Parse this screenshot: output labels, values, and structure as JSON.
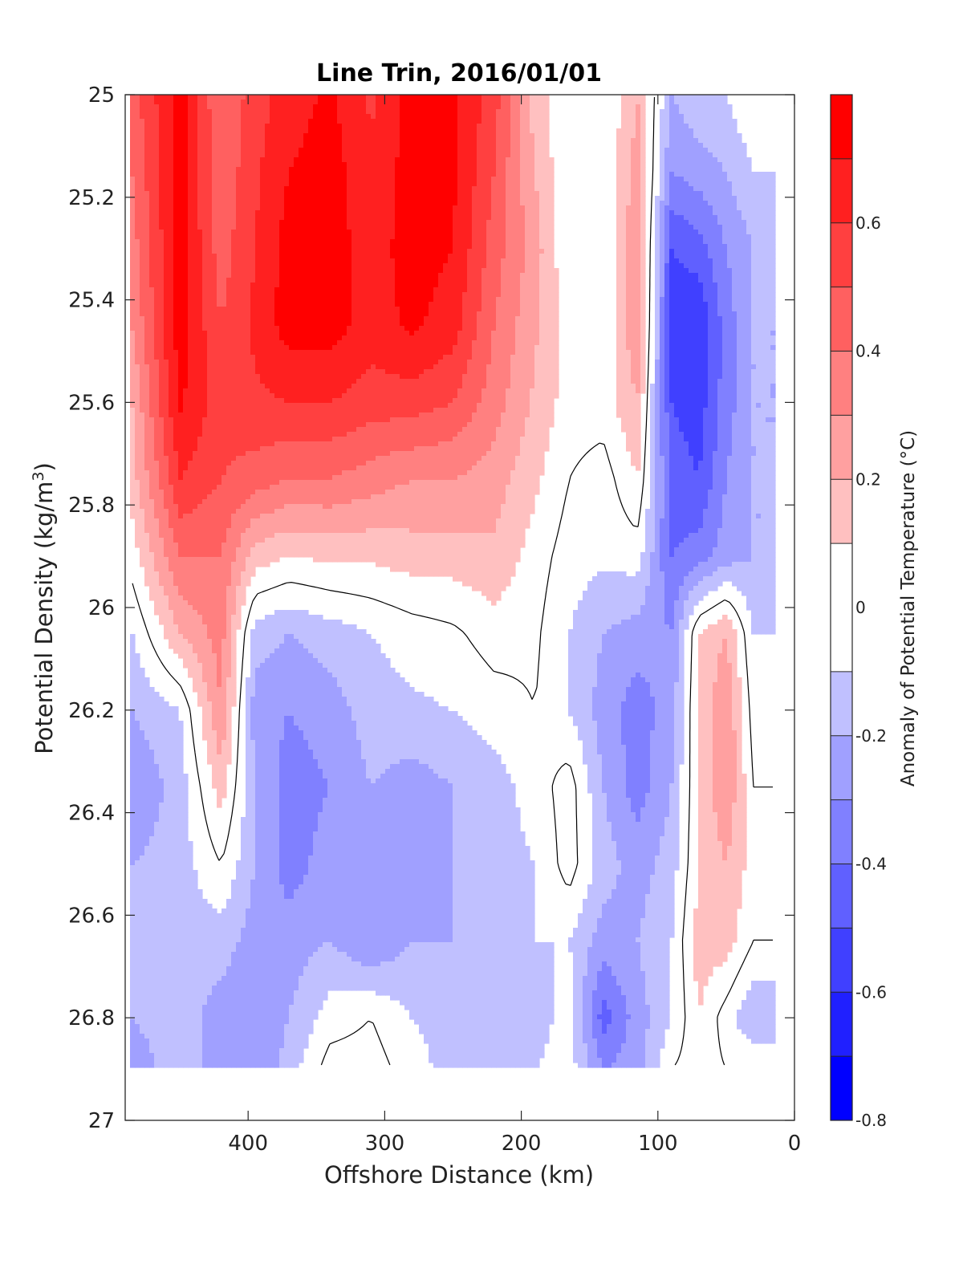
{
  "chart_data": {
    "type": "heatmap",
    "subtype": "filled-contour",
    "title": "Line Trin, 2016/01/01",
    "xlabel": "Offshore Distance (km)",
    "ylabel_main": "Potential Density (kg/m",
    "ylabel_sup": "3",
    "ylabel_close": ")",
    "colorbar_label": "Anomaly of Potential Temperature (°C)",
    "xlim": [
      490,
      0
    ],
    "ylim": [
      25,
      27
    ],
    "y_axis_inverted": true,
    "x_ticks": [
      400,
      300,
      200,
      100,
      0
    ],
    "x_tick_labels": [
      "400",
      "300",
      "200",
      "100",
      "0"
    ],
    "y_ticks": [
      25,
      25.2,
      25.4,
      25.6,
      25.8,
      26,
      26.2,
      26.4,
      26.6,
      26.8,
      27
    ],
    "y_tick_labels": [
      "25",
      "25.2",
      "25.4",
      "25.6",
      "25.8",
      "26",
      "26.2",
      "26.4",
      "26.6",
      "26.8",
      "27"
    ],
    "colorbar_range": [
      -0.8,
      0.8
    ],
    "colorbar_levels": [
      -0.8,
      -0.7,
      -0.6,
      -0.5,
      -0.4,
      -0.3,
      -0.2,
      -0.1,
      0.1,
      0.2,
      0.3,
      0.4,
      0.5,
      0.6,
      0.7,
      0.8
    ],
    "colorbar_ticks": [
      -0.8,
      -0.6,
      -0.4,
      -0.2,
      0,
      0.2,
      0.4,
      0.6
    ],
    "colorbar_tick_labels": [
      "-0.8",
      "-0.6",
      "-0.4",
      "-0.2",
      "0",
      "0.2",
      "0.4",
      "0.6"
    ],
    "colors": {
      "-0.75": "#0000ff",
      "-0.65": "#2020ff",
      "-0.55": "#4040ff",
      "-0.45": "#6060ff",
      "-0.35": "#8080ff",
      "-0.25": "#a0a0ff",
      "-0.15": "#c0c0ff",
      "0": "#ffffff",
      "0.15": "#ffc0c0",
      "0.25": "#ffa0a0",
      "0.35": "#ff8080",
      "0.45": "#ff6060",
      "0.55": "#ff4040",
      "0.65": "#ff2020",
      "0.75": "#ff0000"
    },
    "zero_contour_color": "#000000",
    "x": [
      485,
      450,
      420,
      395,
      370,
      340,
      310,
      280,
      250,
      220,
      190,
      165,
      140,
      115,
      90,
      70,
      50,
      30,
      15
    ],
    "y": [
      25.0,
      25.15,
      25.3,
      25.45,
      25.6,
      25.75,
      25.9,
      26.05,
      26.2,
      26.35,
      26.5,
      26.65,
      26.8,
      26.9
    ],
    "z": [
      [
        0.45,
        0.75,
        0.4,
        0.55,
        0.65,
        0.72,
        0.58,
        0.75,
        0.72,
        0.55,
        0.15,
        0.0,
        0.0,
        0.2,
        -0.2,
        -0.12,
        -0.1,
        0.0,
        null
      ],
      [
        0.4,
        0.75,
        0.42,
        0.58,
        0.7,
        0.75,
        0.62,
        0.75,
        0.72,
        0.5,
        0.2,
        0.0,
        0.0,
        0.25,
        -0.3,
        -0.25,
        -0.2,
        -0.1,
        -0.1
      ],
      [
        0.35,
        0.75,
        0.45,
        0.6,
        0.75,
        0.75,
        0.65,
        0.75,
        0.7,
        0.45,
        0.25,
        0.0,
        0.0,
        0.3,
        -0.5,
        -0.45,
        -0.3,
        -0.2,
        -0.15
      ],
      [
        0.3,
        0.75,
        0.5,
        0.62,
        0.75,
        0.75,
        0.65,
        0.72,
        0.65,
        0.4,
        0.22,
        0.05,
        0.0,
        0.3,
        -0.55,
        -0.6,
        -0.35,
        -0.2,
        null
      ],
      [
        0.2,
        0.72,
        0.55,
        0.58,
        0.6,
        0.6,
        0.55,
        0.55,
        0.5,
        0.35,
        0.18,
        0.05,
        0.05,
        0.2,
        -0.5,
        -0.55,
        -0.35,
        -0.2,
        null
      ],
      [
        0.15,
        0.6,
        0.5,
        0.45,
        0.4,
        0.4,
        0.35,
        0.3,
        0.3,
        0.25,
        0.12,
        0.0,
        -0.05,
        0.1,
        -0.45,
        -0.5,
        -0.3,
        -0.2,
        null
      ],
      [
        0.05,
        0.4,
        0.4,
        0.15,
        0.1,
        0.12,
        0.12,
        0.15,
        0.15,
        0.18,
        0.05,
        -0.05,
        -0.08,
        -0.05,
        -0.4,
        -0.35,
        -0.25,
        -0.2,
        null
      ],
      [
        -0.1,
        0.2,
        0.35,
        -0.15,
        -0.2,
        -0.15,
        -0.1,
        -0.05,
        -0.02,
        0.05,
        0.02,
        -0.1,
        -0.2,
        -0.25,
        -0.3,
        0.1,
        0.2,
        -0.1,
        -0.1
      ],
      [
        -0.2,
        -0.1,
        0.3,
        -0.25,
        -0.3,
        -0.25,
        -0.15,
        -0.12,
        -0.1,
        -0.05,
        0.0,
        -0.1,
        -0.25,
        -0.35,
        -0.25,
        0.12,
        0.3,
        -0.05,
        null
      ],
      [
        -0.3,
        -0.15,
        0.15,
        -0.2,
        -0.35,
        -0.3,
        -0.2,
        -0.25,
        -0.2,
        -0.15,
        -0.05,
        0.05,
        -0.2,
        -0.35,
        -0.2,
        0.1,
        0.3,
        0.0,
        null
      ],
      [
        -0.2,
        -0.15,
        0.0,
        -0.2,
        -0.35,
        -0.25,
        -0.2,
        -0.25,
        -0.2,
        -0.15,
        -0.1,
        0.05,
        -0.15,
        -0.25,
        -0.15,
        0.1,
        0.2,
        0.05,
        null
      ],
      [
        -0.15,
        -0.15,
        -0.15,
        -0.25,
        -0.25,
        -0.2,
        -0.3,
        -0.2,
        -0.2,
        -0.15,
        -0.1,
        -0.1,
        -0.25,
        -0.2,
        -0.1,
        0.15,
        0.15,
        0.0,
        null
      ],
      [
        -0.2,
        -0.15,
        -0.25,
        -0.3,
        -0.2,
        -0.05,
        0.0,
        -0.1,
        -0.15,
        -0.2,
        -0.15,
        -0.05,
        -0.45,
        -0.25,
        -0.1,
        0.1,
        -0.05,
        -0.2,
        null
      ],
      [
        -0.25,
        -0.15,
        -0.25,
        -0.3,
        -0.15,
        0.05,
        0.05,
        -0.05,
        -0.15,
        -0.15,
        -0.1,
        -0.05,
        -0.3,
        -0.25,
        0.0,
        0.05,
        0.0,
        0.0,
        null
      ]
    ]
  }
}
